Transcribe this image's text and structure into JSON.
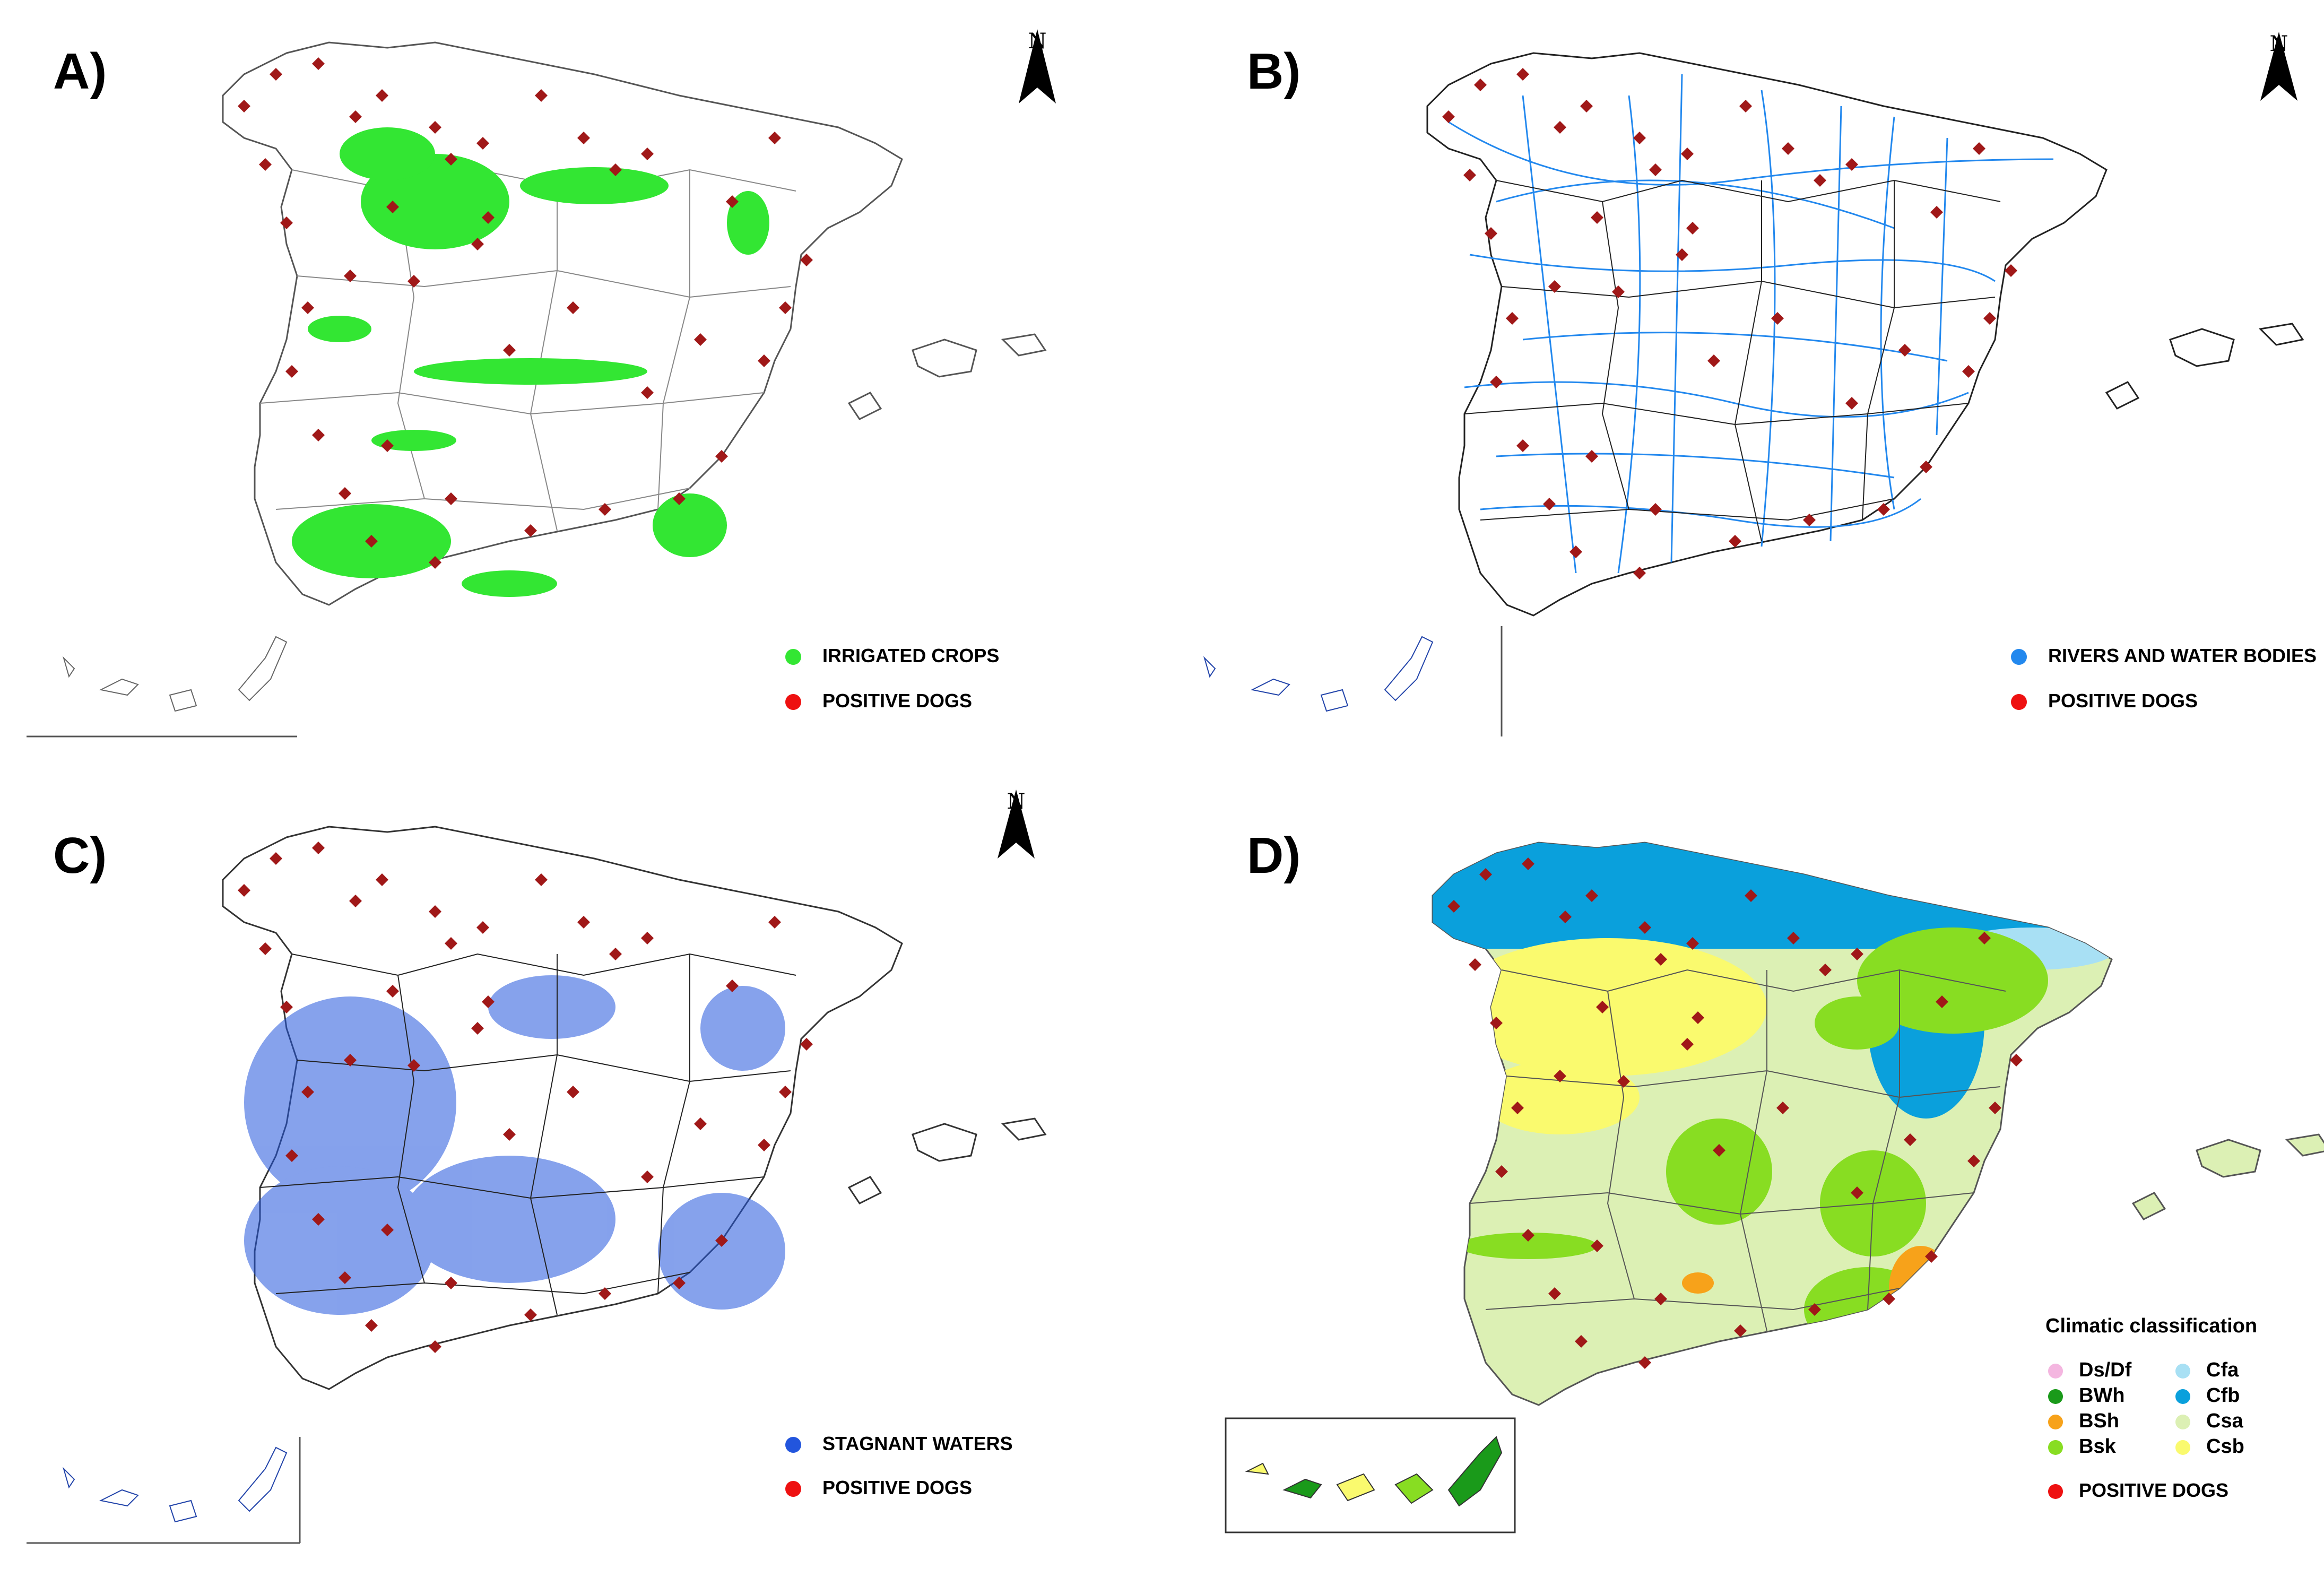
{
  "panels": [
    {
      "label": "A)",
      "north": "N",
      "legend": [
        {
          "text": "IRRIGATED CROPS",
          "color": "#33e633"
        },
        {
          "text": "POSITIVE DOGS",
          "color": "#ee1111"
        }
      ]
    },
    {
      "label": "B)",
      "north": "N",
      "legend": [
        {
          "text": "RIVERS AND WATER BODIES",
          "color": "#2288ee"
        },
        {
          "text": "POSITIVE DOGS",
          "color": "#ee1111"
        }
      ]
    },
    {
      "label": "C)",
      "north": "N",
      "legend": [
        {
          "text": "STAGNANT WATERS",
          "color": "#2255dd"
        },
        {
          "text": "POSITIVE DOGS",
          "color": "#ee1111"
        }
      ]
    },
    {
      "label": "D)",
      "legend_title": "Climatic classification",
      "climate_classes": [
        {
          "code": "Ds/Df",
          "color": "#f4b6e0"
        },
        {
          "code": "Cfa",
          "color": "#a8e0f4"
        },
        {
          "code": "BWh",
          "color": "#1a9a1a"
        },
        {
          "code": "Cfb",
          "color": "#0aa0dc"
        },
        {
          "code": "BSh",
          "color": "#f7a21a"
        },
        {
          "code": "Csa",
          "color": "#dcf0b4"
        },
        {
          "code": "Bsk",
          "color": "#88dd22"
        },
        {
          "code": "Csb",
          "color": "#fafa6e"
        }
      ],
      "legend": [
        {
          "text": "POSITIVE DOGS",
          "color": "#ee1111"
        }
      ]
    }
  ],
  "colors": {
    "dog_marker": "#a01818",
    "outline": "#555555"
  }
}
